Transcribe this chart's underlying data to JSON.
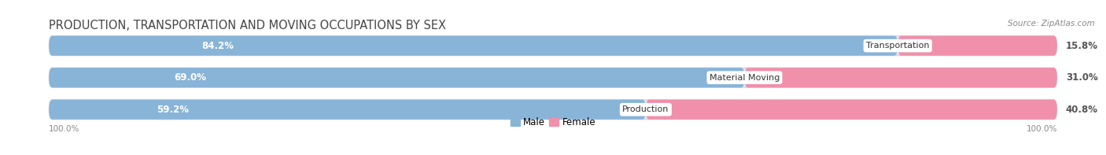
{
  "title": "PRODUCTION, TRANSPORTATION AND MOVING OCCUPATIONS BY SEX",
  "source": "Source: ZipAtlas.com",
  "categories": [
    "Transportation",
    "Material Moving",
    "Production"
  ],
  "male_values": [
    84.2,
    69.0,
    59.2
  ],
  "female_values": [
    15.8,
    31.0,
    40.8
  ],
  "male_color": "#88b4d8",
  "female_color": "#f090aa",
  "male_label": "Male",
  "female_label": "Female",
  "bar_bg_color": "#e4e8ee",
  "bar_bg_border": "#d0d4da",
  "title_fontsize": 10.5,
  "source_fontsize": 7.5,
  "tick_label": "100.0%",
  "background_color": "#ffffff",
  "male_pct_color": "#ffffff",
  "female_pct_color": "#555555",
  "cat_label_color": "#333333"
}
